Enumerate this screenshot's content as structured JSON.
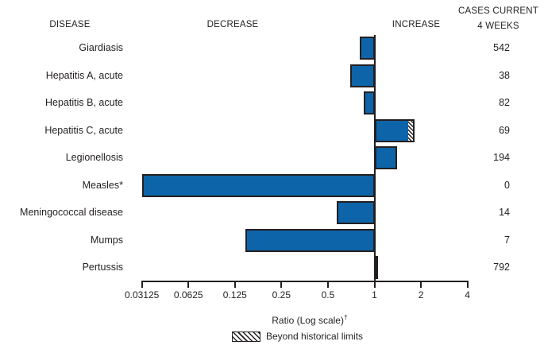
{
  "header": {
    "disease": "DISEASE",
    "decrease": "DECREASE",
    "increase": "INCREASE",
    "cases_line1": "CASES CURRENT",
    "cases_line2": "4 WEEKS"
  },
  "chart_data": {
    "type": "bar",
    "orientation": "horizontal",
    "scale": "log2",
    "baseline": 1,
    "xlim": [
      0.03125,
      4
    ],
    "axis_tick_labels": [
      "0.03125",
      "0.0625",
      "0.125",
      "0.25",
      "0.5",
      "1",
      "2",
      "4"
    ],
    "xlabel": "Ratio (Log scale)",
    "xlabel_superscript": "†",
    "rows": [
      {
        "disease": "Giardiasis",
        "ratio": 0.8,
        "cases": 542
      },
      {
        "disease": "Hepatitis A, acute",
        "ratio": 0.7,
        "cases": 38
      },
      {
        "disease": "Hepatitis B, acute",
        "ratio": 0.85,
        "cases": 82
      },
      {
        "disease": "Hepatitis C, acute",
        "ratio": 1.8,
        "cases": 69,
        "beyond_historical_from": 1.68
      },
      {
        "disease": "Legionellosis",
        "ratio": 1.39,
        "cases": 194
      },
      {
        "disease": "Measles*",
        "ratio": 0.03125,
        "cases": 0
      },
      {
        "disease": "Meningococcal disease",
        "ratio": 0.57,
        "cases": 14
      },
      {
        "disease": "Mumps",
        "ratio": 0.146,
        "cases": 7
      },
      {
        "disease": "Pertussis",
        "ratio": 1.05,
        "cases": 792
      }
    ],
    "legend": {
      "label": "Beyond historical limits",
      "swatch": "hatched-beyond-limits"
    }
  },
  "colors": {
    "bar_fill": "#0e64a8",
    "line": "#231f20",
    "text": "#231f20",
    "hatch_bg": "#ffffff"
  }
}
